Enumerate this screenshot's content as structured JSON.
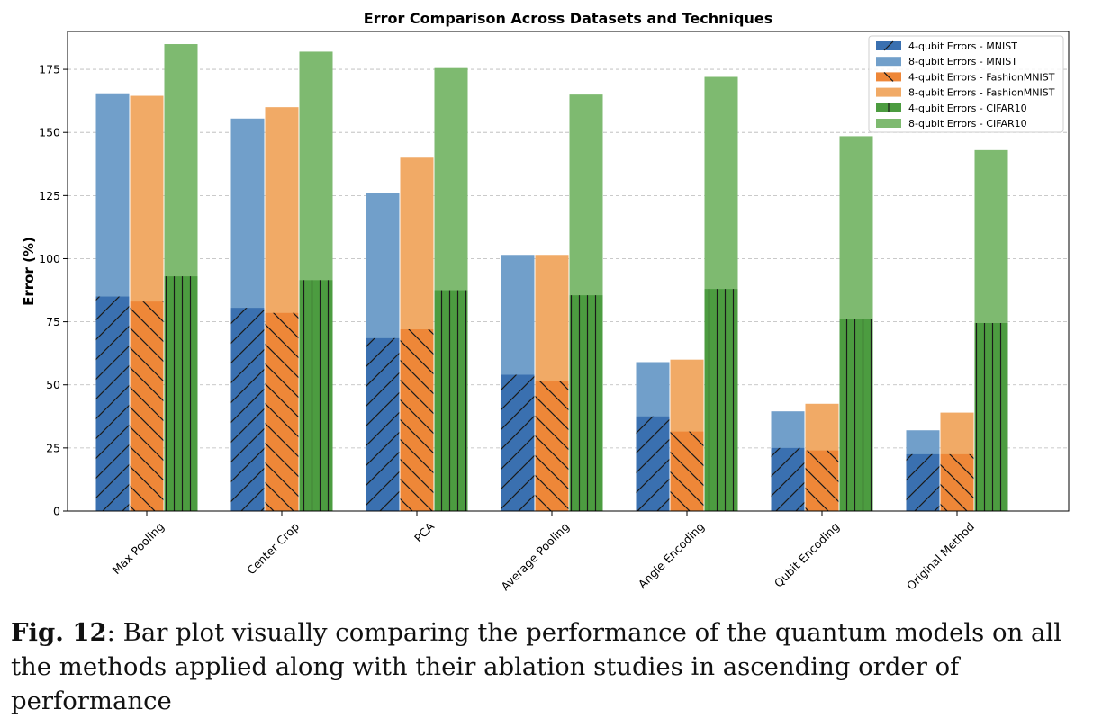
{
  "chart_data": {
    "type": "bar",
    "title": "Error Comparison Across Datasets and Techniques",
    "xlabel": "",
    "ylabel": "Error (%)",
    "ylim": [
      0,
      190
    ],
    "yticks": [
      0,
      25,
      50,
      75,
      100,
      125,
      150,
      175
    ],
    "grid": "y-dashed",
    "legend_position": "top-right",
    "categories": [
      "Max Pooling",
      "Center Crop",
      "PCA",
      "Average Pooling",
      "Angle Encoding",
      "Qubit Encoding",
      "Original Method"
    ],
    "series": [
      {
        "name": "4-qubit Errors - MNIST",
        "group": "MNIST",
        "qubits": 4,
        "color": "#3a70b0",
        "hatch": "forward",
        "values": [
          85,
          80.5,
          68.5,
          54,
          37.5,
          25,
          22.5
        ]
      },
      {
        "name": "8-qubit Errors - MNIST",
        "group": "MNIST",
        "qubits": 8,
        "color": "#719fca",
        "hatch": "none",
        "values": [
          165.5,
          155.5,
          126,
          101.5,
          59,
          39.5,
          32
        ]
      },
      {
        "name": "4-qubit Errors - FashionMNIST",
        "group": "FashionMNIST",
        "qubits": 4,
        "color": "#ee8738",
        "hatch": "back",
        "values": [
          83,
          78.5,
          72,
          51.5,
          31.5,
          24,
          22.5
        ]
      },
      {
        "name": "8-qubit Errors - FashionMNIST",
        "group": "FashionMNIST",
        "qubits": 8,
        "color": "#f1aa66",
        "hatch": "none",
        "values": [
          164.5,
          160,
          140,
          101.5,
          60,
          42.5,
          39
        ]
      },
      {
        "name": "4-qubit Errors - CIFAR10",
        "group": "CIFAR10",
        "qubits": 4,
        "color": "#4c9c40",
        "hatch": "vertical",
        "values": [
          93,
          91.5,
          87.5,
          85.5,
          88,
          76,
          74.5
        ]
      },
      {
        "name": "8-qubit Errors - CIFAR10",
        "group": "CIFAR10",
        "qubits": 8,
        "color": "#7eba70",
        "hatch": "none",
        "values": [
          185,
          182,
          175.5,
          165,
          172,
          148.5,
          143
        ]
      }
    ]
  },
  "caption": {
    "label": "Fig. 12",
    "text": ": Bar plot visually comparing the performance of the quantum models on all the methods applied along with their ablation studies in ascending order of performance"
  }
}
